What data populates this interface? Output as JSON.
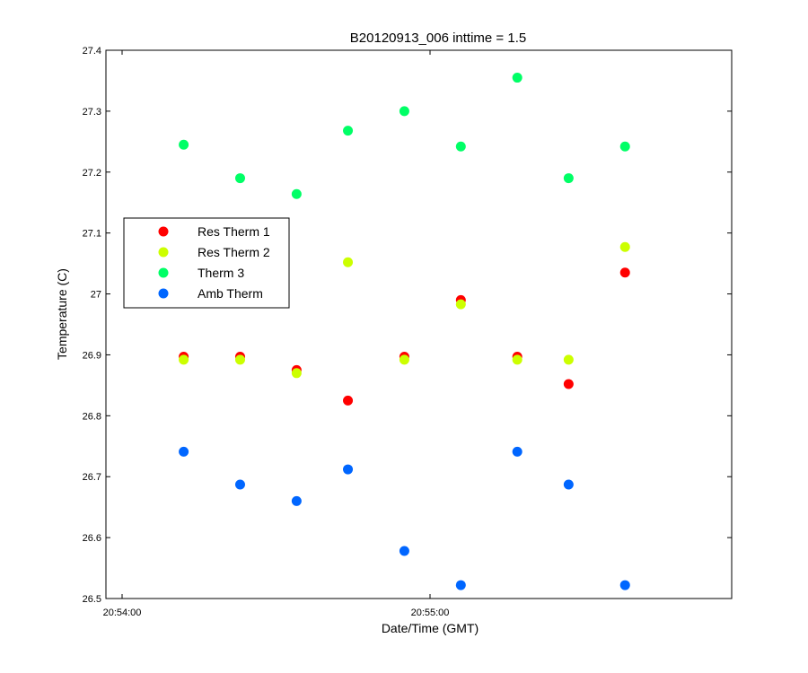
{
  "chart_data": {
    "type": "scatter",
    "title": "B20120913_006 inttime = 1.5",
    "xlabel": "Date/Time (GMT)",
    "ylabel": "Temperature (C)",
    "xlim": [
      "20:54:00",
      "20:56:00"
    ],
    "ylim": [
      26.5,
      27.4
    ],
    "x_ticks": [
      "20:54:00",
      "20:55:00"
    ],
    "y_ticks": [
      "26.5",
      "26.6",
      "26.7",
      "26.8",
      "26.9",
      "27",
      "27.1",
      "27.2",
      "27.3",
      "27.4"
    ],
    "grid": false,
    "legend_position": "middle-left",
    "x": [
      "20:54:12",
      "20:54:23",
      "20:54:34",
      "20:54:44",
      "20:54:55",
      "20:55:06",
      "20:55:17",
      "20:55:27",
      "20:55:38"
    ],
    "series": [
      {
        "name": "Res Therm 1",
        "color": "#ff0000",
        "values": [
          26.897,
          26.897,
          26.875,
          26.825,
          26.897,
          26.99,
          26.897,
          26.852,
          27.035
        ]
      },
      {
        "name": "Res Therm 2",
        "color": "#ccff00",
        "values": [
          26.892,
          26.892,
          26.87,
          27.052,
          26.892,
          26.983,
          26.892,
          26.892,
          27.077
        ]
      },
      {
        "name": "Therm 3",
        "color": "#00ff66",
        "values": [
          27.245,
          27.19,
          27.164,
          27.268,
          27.3,
          27.242,
          27.355,
          27.19,
          27.242
        ]
      },
      {
        "name": "Amb Therm",
        "color": "#0066ff",
        "values": [
          26.741,
          26.687,
          26.66,
          26.712,
          26.578,
          26.522,
          26.741,
          26.687,
          26.522
        ]
      }
    ]
  }
}
